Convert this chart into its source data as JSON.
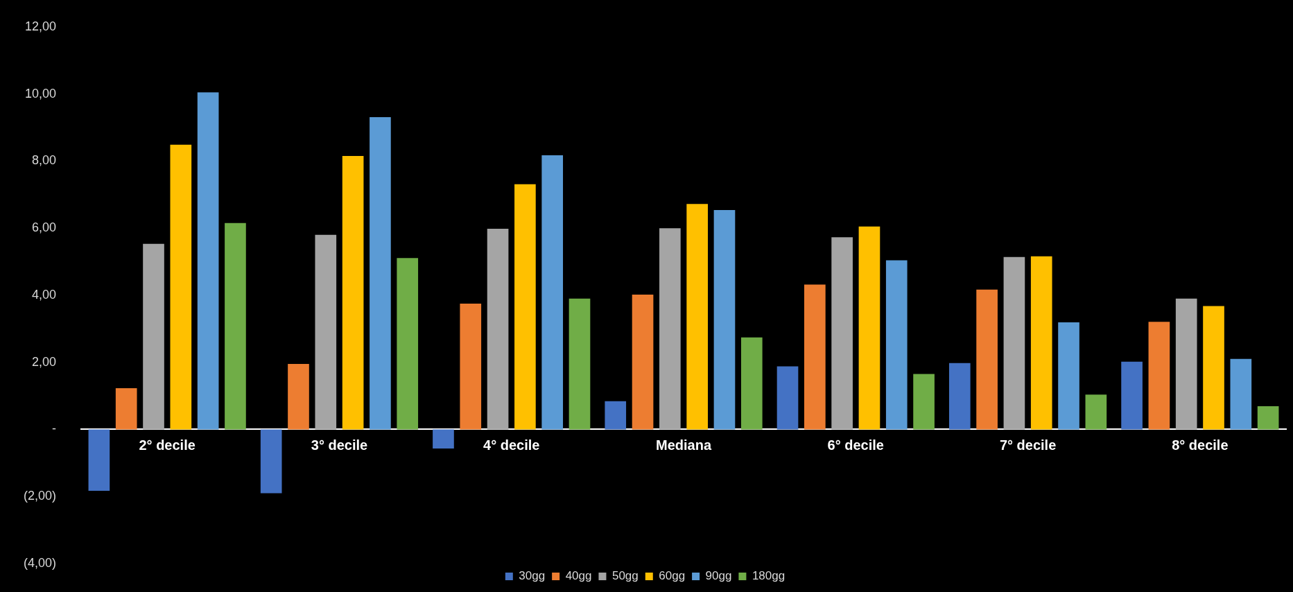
{
  "chart_data": {
    "type": "bar",
    "categories": [
      "2° decile",
      "3° decile",
      "4° decile",
      "Mediana",
      "6° decile",
      "7° decile",
      "8° decile"
    ],
    "series": [
      {
        "name": "30gg",
        "color": "#4472c4",
        "values": [
          -1.83,
          -1.9,
          -0.57,
          0.84,
          1.88,
          1.98,
          2.02
        ]
      },
      {
        "name": "40gg",
        "color": "#ed7d31",
        "values": [
          1.23,
          1.95,
          3.75,
          4.02,
          4.32,
          4.17,
          3.21
        ]
      },
      {
        "name": "50gg",
        "color": "#a5a5a5",
        "values": [
          5.53,
          5.8,
          5.98,
          6.0,
          5.73,
          5.14,
          3.9
        ]
      },
      {
        "name": "60gg",
        "color": "#ffc000",
        "values": [
          8.49,
          8.15,
          7.31,
          6.72,
          6.05,
          5.16,
          3.68
        ]
      },
      {
        "name": "90gg",
        "color": "#5b9bd5",
        "values": [
          10.05,
          9.31,
          8.17,
          6.54,
          5.04,
          3.19,
          2.1
        ]
      },
      {
        "name": "180gg",
        "color": "#70ad47",
        "values": [
          6.15,
          5.11,
          3.9,
          2.74,
          1.65,
          1.04,
          0.69
        ]
      }
    ],
    "ylim": [
      -4,
      12
    ],
    "yticks": [
      {
        "value": -4,
        "label": "(4,00)"
      },
      {
        "value": -2,
        "label": "(2,00)"
      },
      {
        "value": 0,
        "label": "-"
      },
      {
        "value": 2,
        "label": "2,00"
      },
      {
        "value": 4,
        "label": "4,00"
      },
      {
        "value": 6,
        "label": "6,00"
      },
      {
        "value": 8,
        "label": "8,00"
      },
      {
        "value": 10,
        "label": "10,00"
      },
      {
        "value": 12,
        "label": "12,00"
      }
    ],
    "legend": "bottom"
  }
}
